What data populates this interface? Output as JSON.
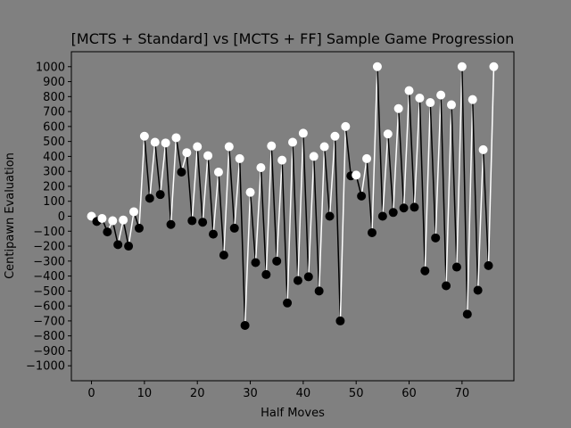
{
  "chart_data": {
    "type": "line",
    "title": "[MCTS + Standard] vs [MCTS + FF] Sample Game Progression",
    "xlabel": "Half Moves",
    "ylabel": "Centipawn Evaluation",
    "xlim": [
      -3.8,
      79.8
    ],
    "ylim": [
      -1100,
      1100
    ],
    "xticks": [
      0,
      10,
      20,
      30,
      40,
      50,
      60,
      70
    ],
    "yticks": [
      -1000,
      -900,
      -800,
      -700,
      -600,
      -500,
      -400,
      -300,
      -200,
      -100,
      0,
      100,
      200,
      300,
      400,
      500,
      600,
      700,
      800,
      900,
      1000
    ],
    "grid": false,
    "background": "#808080",
    "colors": {
      "white_move": "#ffffff",
      "black_move": "#000000",
      "axes": "#000000"
    },
    "series": [
      {
        "x": [
          0,
          1,
          2,
          3,
          4,
          5,
          6,
          7,
          8,
          9,
          10,
          11,
          12,
          13,
          14,
          15,
          16,
          17,
          18,
          19,
          20,
          21,
          22,
          23,
          24,
          25,
          26,
          27,
          28,
          29,
          30,
          31,
          32,
          33,
          34,
          35,
          36,
          37,
          38,
          39,
          40,
          41,
          42,
          43,
          44,
          45,
          46,
          47,
          48,
          49,
          50,
          51,
          52,
          53,
          54,
          55,
          56,
          57,
          58,
          59,
          60,
          61,
          62,
          63,
          64,
          65,
          66,
          67,
          68,
          69,
          70,
          71,
          72,
          73,
          74,
          75,
          76
        ],
        "values": [
          0,
          -35,
          -15,
          -105,
          -30,
          -190,
          -25,
          -200,
          30,
          -80,
          535,
          120,
          495,
          145,
          490,
          -55,
          525,
          295,
          425,
          -30,
          465,
          -40,
          405,
          -120,
          295,
          -260,
          465,
          -80,
          385,
          -730,
          160,
          -310,
          325,
          -390,
          470,
          -300,
          375,
          -580,
          495,
          -430,
          555,
          -405,
          400,
          -500,
          465,
          0,
          535,
          -700,
          600,
          270,
          275,
          135,
          385,
          -110,
          1000,
          0,
          550,
          25,
          720,
          55,
          840,
          60,
          790,
          -365,
          760,
          -145,
          810,
          -465,
          745,
          -340,
          1000,
          -655,
          780,
          -495,
          445,
          -330,
          1000
        ]
      }
    ]
  }
}
